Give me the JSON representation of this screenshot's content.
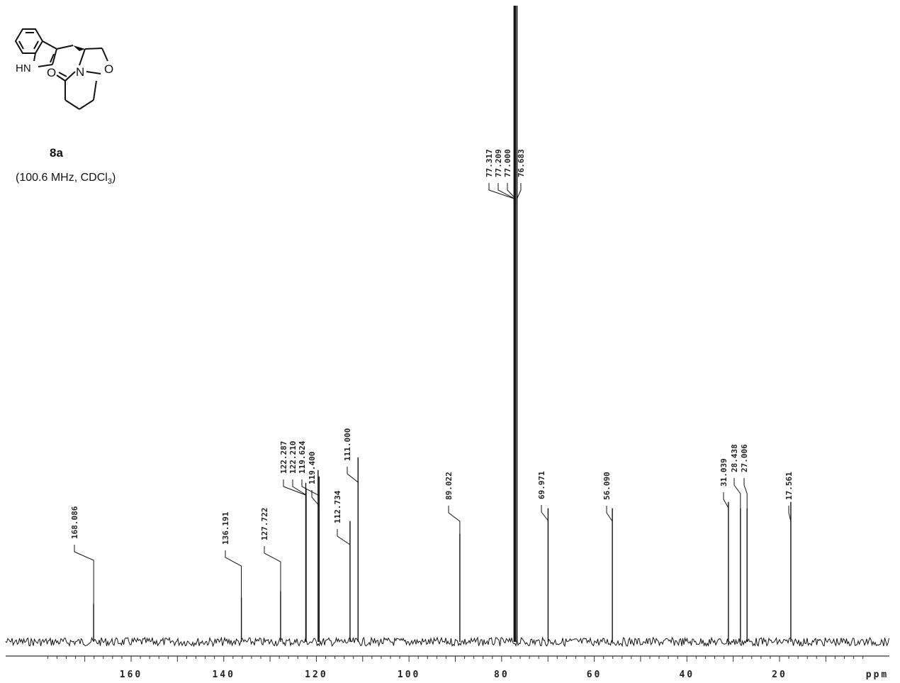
{
  "compound": {
    "id": "8a",
    "conditions_prefix": "(100.6 MHz, CDCl",
    "conditions_sub": "3",
    "conditions_suffix": ")",
    "atom_hn": "HN",
    "atom_n": "N",
    "atom_o_ring": "O",
    "atom_o_carbonyl": "O"
  },
  "chart_data": {
    "type": "line",
    "title": "",
    "xlabel": "ppm",
    "ylabel": "",
    "x_reversed": true,
    "xlim": [
      180,
      0
    ],
    "x_ticks": [
      {
        "value": 160,
        "label": "160"
      },
      {
        "value": 140,
        "label": "140"
      },
      {
        "value": 120,
        "label": "120"
      },
      {
        "value": 100,
        "label": "100"
      },
      {
        "value": 80,
        "label": "80"
      },
      {
        "value": 60,
        "label": "60"
      },
      {
        "value": 40,
        "label": "40"
      },
      {
        "value": 20,
        "label": "20"
      }
    ],
    "peaks": [
      {
        "ppm": 168.086,
        "label": "168.086",
        "intensity": 0.06
      },
      {
        "ppm": 136.191,
        "label": "136.191",
        "intensity": 0.07
      },
      {
        "ppm": 127.722,
        "label": "127.722",
        "intensity": 0.08
      },
      {
        "ppm": 122.287,
        "label": "122.287",
        "intensity": 0.25
      },
      {
        "ppm": 122.21,
        "label": "122.210",
        "intensity": 0.24
      },
      {
        "ppm": 119.624,
        "label": "119.624",
        "intensity": 0.27
      },
      {
        "ppm": 119.4,
        "label": "119.400",
        "intensity": 0.26
      },
      {
        "ppm": 112.734,
        "label": "112.734",
        "intensity": 0.19
      },
      {
        "ppm": 111.0,
        "label": "111.000",
        "intensity": 0.29
      },
      {
        "ppm": 89.022,
        "label": "89.022",
        "intensity": 0.17
      },
      {
        "ppm": 77.317,
        "label": "77.317",
        "intensity": 1.0
      },
      {
        "ppm": 77.209,
        "label": "77.209",
        "intensity": 1.0
      },
      {
        "ppm": 77.0,
        "label": "77.000",
        "intensity": 1.0
      },
      {
        "ppm": 76.683,
        "label": "76.683",
        "intensity": 1.0
      },
      {
        "ppm": 69.971,
        "label": "69.971",
        "intensity": 0.21
      },
      {
        "ppm": 56.09,
        "label": "56.090",
        "intensity": 0.21
      },
      {
        "ppm": 31.039,
        "label": "31.039",
        "intensity": 0.22
      },
      {
        "ppm": 28.438,
        "label": "28.438",
        "intensity": 0.21
      },
      {
        "ppm": 27.006,
        "label": "27.006",
        "intensity": 0.21
      },
      {
        "ppm": 17.561,
        "label": "17.561",
        "intensity": 0.22
      }
    ]
  }
}
